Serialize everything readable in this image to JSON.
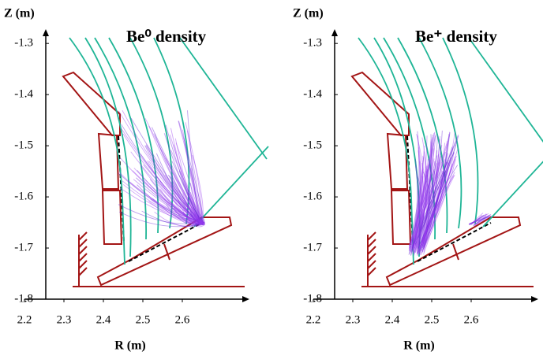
{
  "chart_data": [
    {
      "type": "density",
      "title": "Be⁰ density",
      "xlabel": "R (m)",
      "ylabel": "Z (m)",
      "xlim": [
        2.2,
        2.77
      ],
      "ylim": [
        -1.8,
        -1.272
      ],
      "xticks": [
        2.2,
        2.3,
        2.4,
        2.5,
        2.6
      ],
      "yticks": [
        -1.3,
        -1.4,
        -1.5,
        -1.6,
        -1.7,
        -1.8
      ]
    },
    {
      "type": "density",
      "title": "Be⁺ density",
      "xlabel": "R (m)",
      "ylabel": "Z (m)",
      "xlim": [
        2.2,
        2.77
      ],
      "ylim": [
        -1.8,
        -1.272
      ],
      "xticks": [
        2.2,
        2.3,
        2.4,
        2.5,
        2.6
      ],
      "yticks": [
        -1.3,
        -1.4,
        -1.5,
        -1.6,
        -1.7,
        -1.8
      ]
    }
  ]
}
